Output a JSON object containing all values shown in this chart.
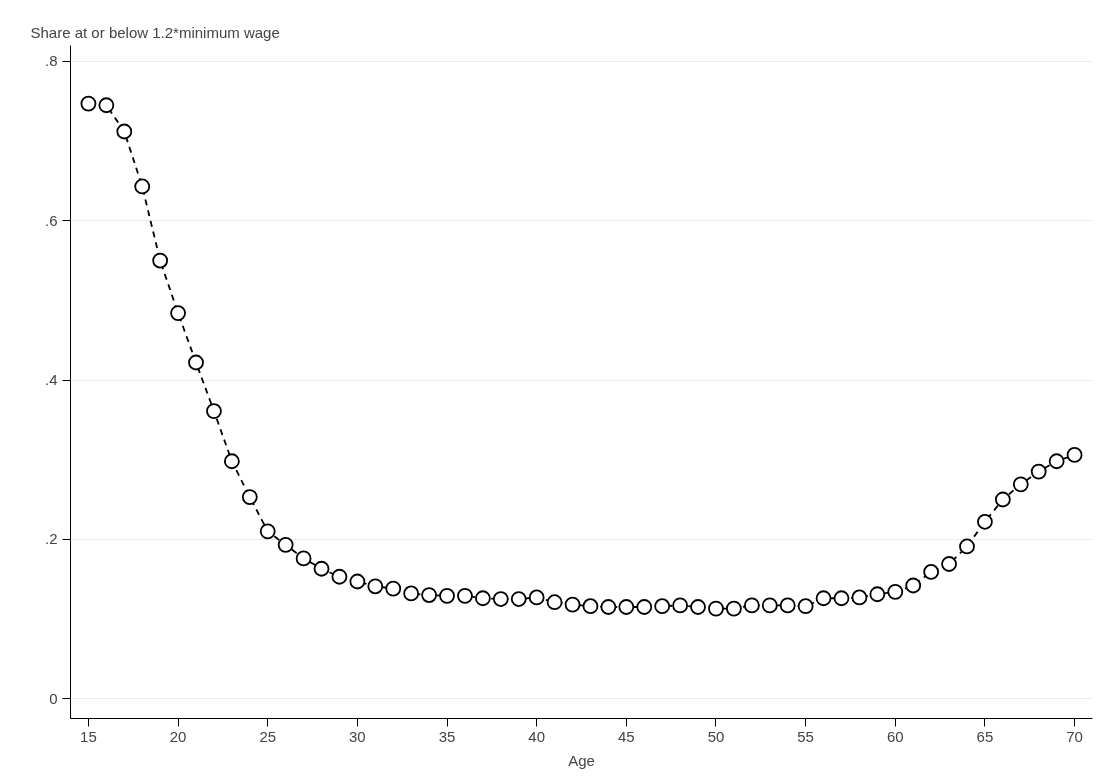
{
  "chart_data": {
    "type": "line",
    "ylabel": "Share at or below 1.2*minimum wage",
    "xlabel": "Age",
    "x": [
      15,
      16,
      17,
      18,
      19,
      20,
      21,
      22,
      23,
      24,
      25,
      26,
      27,
      28,
      29,
      30,
      31,
      32,
      33,
      34,
      35,
      36,
      37,
      38,
      39,
      40,
      41,
      42,
      43,
      44,
      45,
      46,
      47,
      48,
      49,
      50,
      51,
      52,
      53,
      54,
      55,
      56,
      57,
      58,
      59,
      60,
      61,
      62,
      63,
      64,
      65,
      66,
      67,
      68,
      69,
      70
    ],
    "series": [
      {
        "color": "#000000",
        "values": [
          0.747,
          0.745,
          0.712,
          0.643,
          0.55,
          0.484,
          0.422,
          0.361,
          0.298,
          0.253,
          0.21,
          0.193,
          0.176,
          0.163,
          0.153,
          0.147,
          0.141,
          0.138,
          0.132,
          0.13,
          0.129,
          0.129,
          0.126,
          0.125,
          0.125,
          0.127,
          0.121,
          0.118,
          0.116,
          0.115,
          0.115,
          0.115,
          0.116,
          0.117,
          0.115,
          0.113,
          0.113,
          0.117,
          0.117,
          0.117,
          0.116,
          0.126,
          0.126,
          0.127,
          0.131,
          0.134,
          0.142,
          0.159,
          0.169,
          0.191,
          0.222,
          0.25,
          0.269,
          0.285,
          0.298,
          0.306
        ]
      }
    ],
    "xlim": [
      14,
      71
    ],
    "ylim": [
      -0.025,
      0.82
    ],
    "xticks": [
      15,
      20,
      25,
      30,
      35,
      40,
      45,
      50,
      55,
      60,
      65,
      70
    ],
    "yticks": [
      {
        "value": 0,
        "label": "0"
      },
      {
        "value": 0.2,
        "label": ".2"
      },
      {
        "value": 0.4,
        "label": ".4"
      },
      {
        "value": 0.6,
        "label": ".6"
      },
      {
        "value": 0.8,
        "label": ".8"
      }
    ],
    "grid": "y",
    "marker": "circle",
    "line_style": "dashed"
  }
}
